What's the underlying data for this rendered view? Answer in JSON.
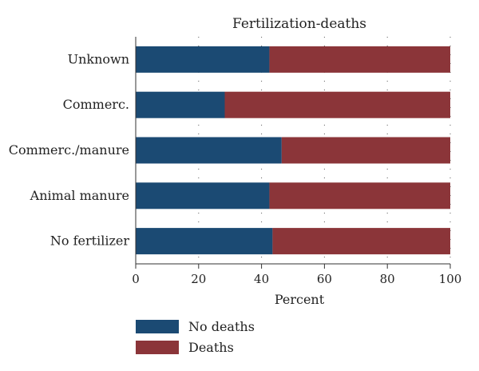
{
  "chart_data": {
    "type": "bar",
    "orientation": "horizontal",
    "stacked": true,
    "percent_stacked": true,
    "title": "Fertilization-deaths",
    "xlabel": "Percent",
    "ylabel": "",
    "xlim": [
      0,
      100
    ],
    "xticks": [
      "0",
      "20",
      "40",
      "60",
      "80",
      "100"
    ],
    "grid": "vertical dotted",
    "legend_position": "bottom-left",
    "categories": [
      "Unknown",
      "Commerc.",
      "Commerc./manure",
      "Animal manure",
      "No fertilizer"
    ],
    "series": [
      {
        "name": "No deaths",
        "color": "#1b4a73",
        "values": [
          42.5,
          28.3,
          46.4,
          42.5,
          43.5
        ]
      },
      {
        "name": "Deaths",
        "color": "#8b3539",
        "values": [
          57.5,
          71.7,
          53.6,
          57.5,
          56.5
        ]
      }
    ]
  }
}
